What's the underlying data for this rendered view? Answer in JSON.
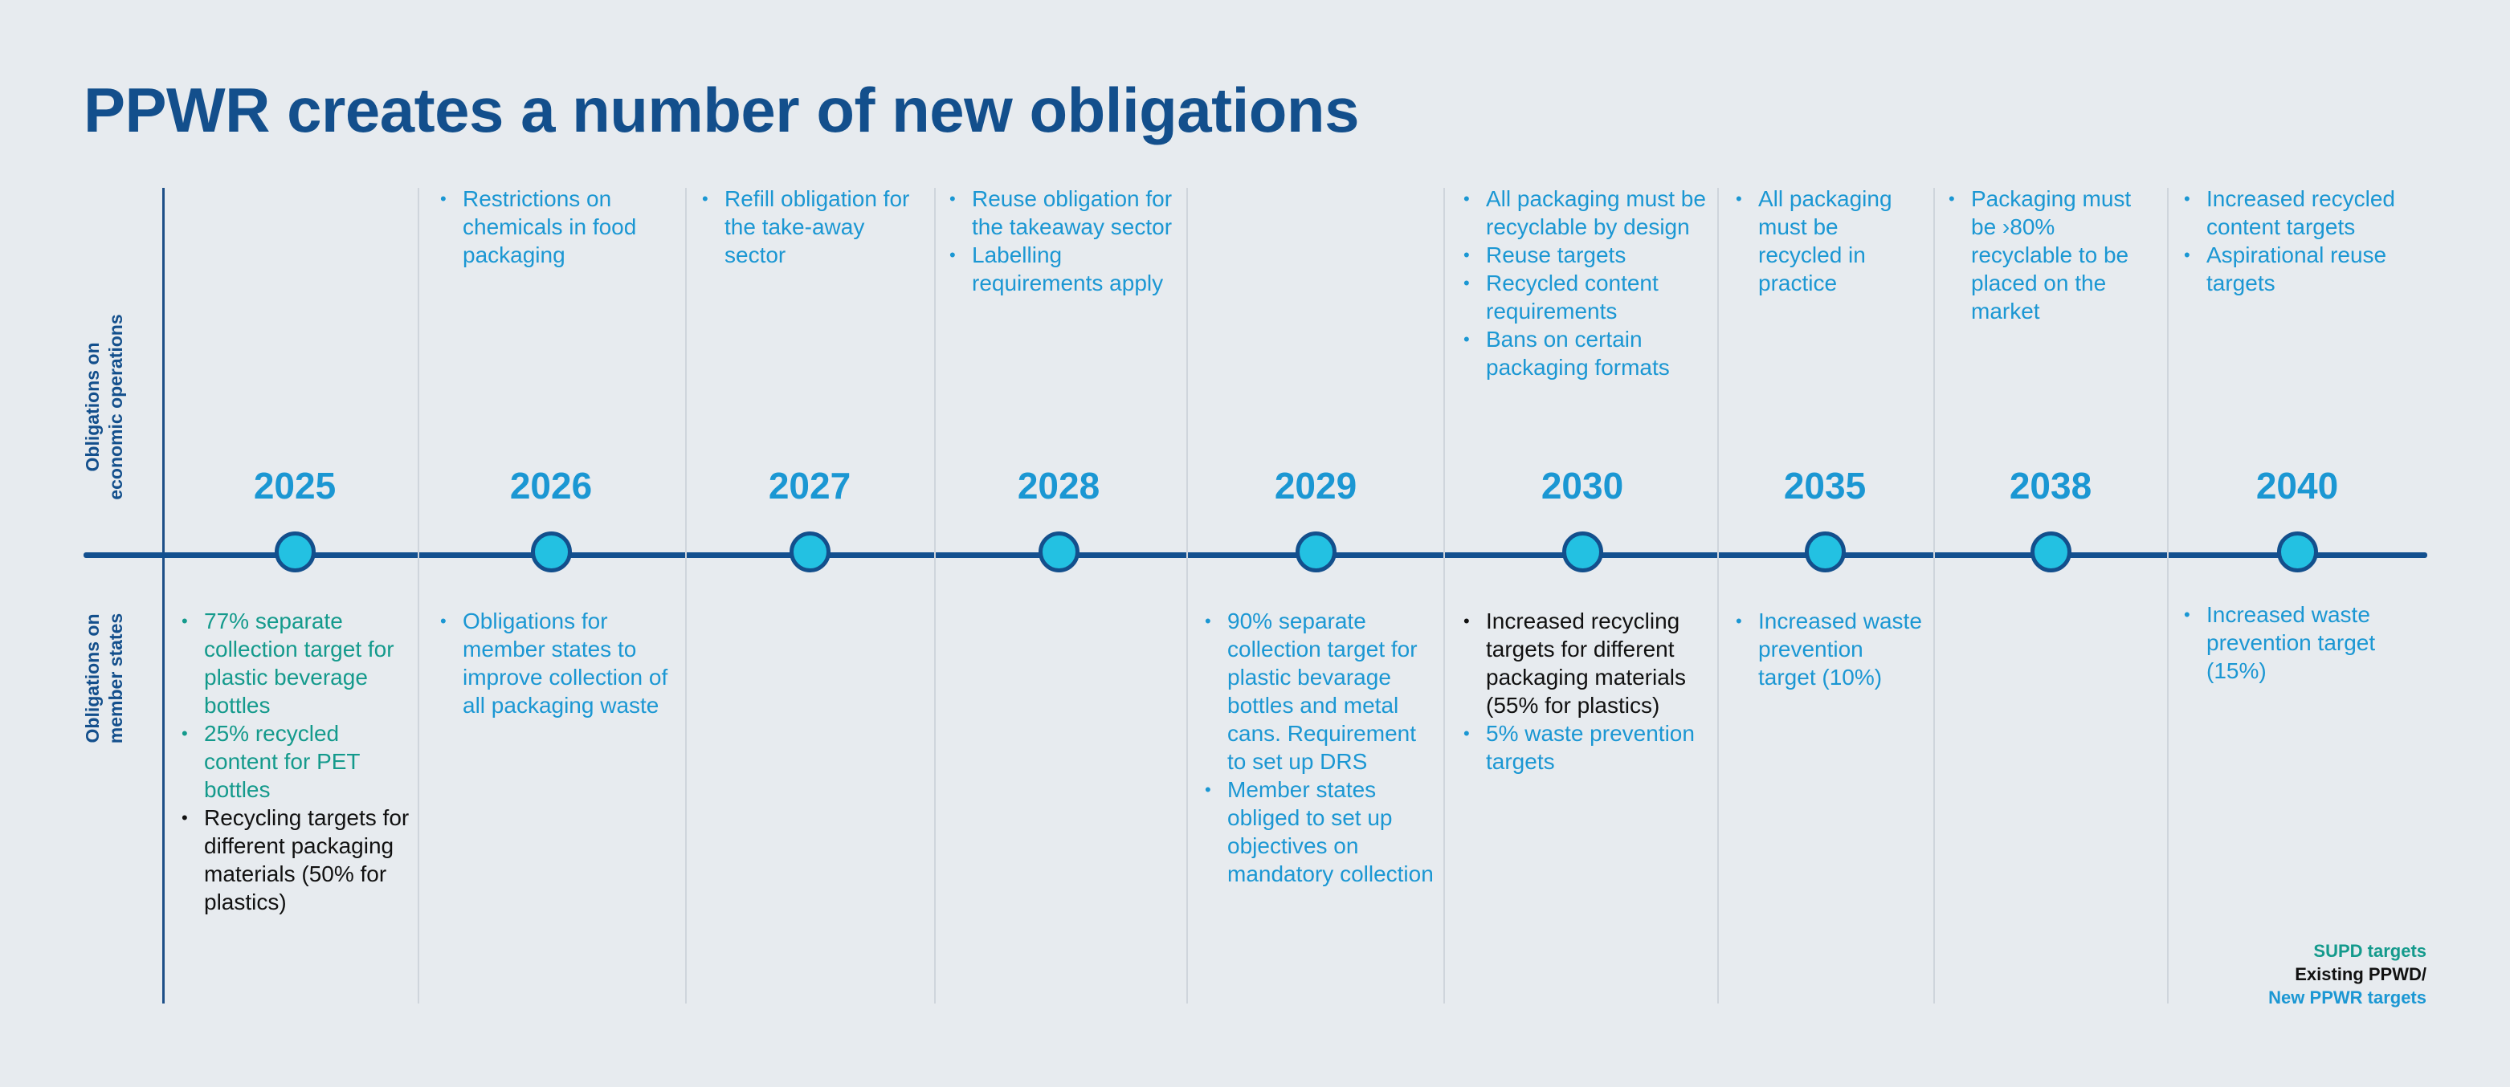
{
  "title": "PPWR creates a number of new obligations",
  "side_labels": {
    "economic": [
      "Obligations on",
      "economic operations"
    ],
    "member": [
      "Obligations on",
      "member states"
    ]
  },
  "colors": {
    "ppwr": "#1b97d3",
    "supd": "#149a8c",
    "ppwd": "#111111",
    "title": "#134f8c",
    "dot": "#23c1e2"
  },
  "years": [
    "2025",
    "2026",
    "2027",
    "2028",
    "2029",
    "2030",
    "2035",
    "2038",
    "2040"
  ],
  "economic": {
    "2026": [
      {
        "text": "Restrictions on chemicals in food packaging",
        "type": "ppwr"
      }
    ],
    "2027": [
      {
        "text": "Refill obligation for the take-away sector",
        "type": "ppwr"
      }
    ],
    "2028": [
      {
        "text": "Reuse obligation for the takeaway sector",
        "type": "ppwr"
      },
      {
        "text": "Labelling requirements apply",
        "type": "ppwr"
      }
    ],
    "2030": [
      {
        "text": "All packaging must be recyclable by design",
        "type": "ppwr"
      },
      {
        "text": "Reuse targets",
        "type": "ppwr"
      },
      {
        "text": "Recycled content requirements",
        "type": "ppwr"
      },
      {
        "text": "Bans on certain packaging formats",
        "type": "ppwr"
      }
    ],
    "2035": [
      {
        "text": "All packaging must be recycled in practice",
        "type": "ppwr"
      }
    ],
    "2038": [
      {
        "text": "Packaging must be ›80% recyclable to be placed on the market",
        "type": "ppwr"
      }
    ],
    "2040": [
      {
        "text": "Increased recycled content targets",
        "type": "ppwr"
      },
      {
        "text": "Aspirational reuse targets",
        "type": "ppwr"
      }
    ]
  },
  "member": {
    "2025": [
      {
        "text": "77% separate collection target for plastic beverage bottles",
        "type": "supd"
      },
      {
        "text": "25% recycled content for PET bottles",
        "type": "supd"
      },
      {
        "text": "Recycling targets for different packaging materials (50% for plastics)",
        "type": "ppwd"
      }
    ],
    "2026": [
      {
        "text": "Obligations for member states to improve collection of all packaging waste",
        "type": "ppwr"
      }
    ],
    "2029": [
      {
        "text": "90% separate collection target for plastic bevarage bottles and metal cans. Requirement to set up DRS",
        "type": "ppwr"
      },
      {
        "text": "Member states obliged to set up objectives on mandatory collection",
        "type": "ppwr"
      }
    ],
    "2030": [
      {
        "text": "Increased recycling targets for different packaging materials (55% for plastics)",
        "type": "ppwd"
      },
      {
        "text": "5% waste prevention targets",
        "type": "ppwr"
      }
    ],
    "2035": [
      {
        "text": "Increased waste prevention target (10%)",
        "type": "ppwr"
      }
    ],
    "2040": [
      {
        "text": "Increased waste prevention target (15%)",
        "type": "ppwr"
      }
    ]
  },
  "legend": {
    "supd": "SUPD targets",
    "ppwd": "Existing PPWD/",
    "ppwr": "New PPWR targets"
  }
}
